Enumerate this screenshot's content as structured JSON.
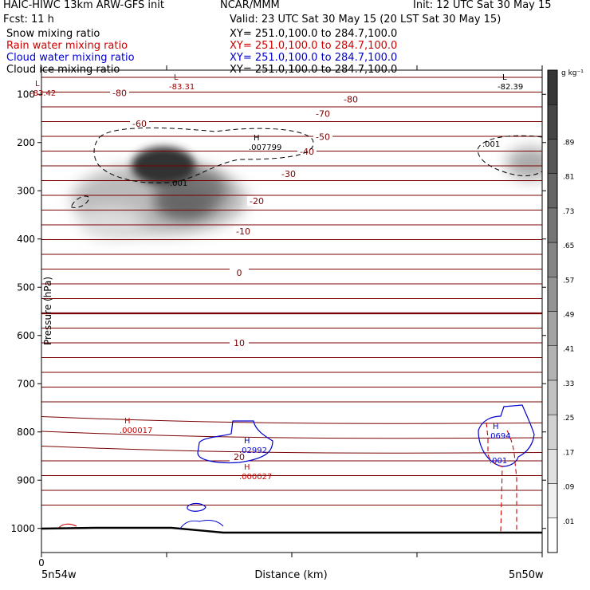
{
  "header": {
    "left_title": "HAIC-HIWC 13km ARW-GFS init",
    "center_title": "NCAR/MMM",
    "init": "Init: 12 UTC Sat 30 May 15",
    "fcst": "Fcst:    11 h",
    "valid": "Valid: 23 UTC Sat 30 May 15 (20 LST Sat 30 May 15)"
  },
  "fields": [
    {
      "name": "Snow mixing ratio",
      "xy": "XY= 251.0,100.0 to 284.7,100.0",
      "color": "#000000"
    },
    {
      "name": "Rain water mixing ratio",
      "xy": "XY= 251.0,100.0 to 284.7,100.0",
      "color": "#d00000"
    },
    {
      "name": "Cloud water mixing ratio",
      "xy": "XY= 251.0,100.0 to 284.7,100.0",
      "color": "#0000d0"
    },
    {
      "name": "Cloud ice mixing ratio",
      "xy": "XY= 251.0,100.0 to 284.7,100.0",
      "color": "#000000"
    }
  ],
  "colorbar": {
    "unit": "g kg⁻¹",
    "labels": [
      ".01",
      ".09",
      ".17",
      ".25",
      ".33",
      ".41",
      ".49",
      ".57",
      ".65",
      ".73",
      ".81",
      ".89"
    ]
  },
  "chart_data": {
    "type": "heatmap",
    "ylabel": "Pressure (hPa)",
    "xlabel": "Distance (km)",
    "x_left_label": "5n54w",
    "x_right_label": "5n50w",
    "x_origin_label": "0",
    "yticks": [
      100,
      200,
      300,
      400,
      500,
      600,
      700,
      800,
      900,
      1000
    ],
    "ylim": [
      50,
      1050
    ],
    "temperature_isotherms": [
      {
        "label": "-80",
        "p": 97
      },
      {
        "label": "-80",
        "p": 110
      },
      {
        "label": "-70",
        "p": 140
      },
      {
        "label": "-60",
        "p": 161
      },
      {
        "label": "-50",
        "p": 188
      },
      {
        "label": "-40",
        "p": 219
      },
      {
        "label": "-30",
        "p": 265
      },
      {
        "label": "-20",
        "p": 321
      },
      {
        "label": "-10",
        "p": 384
      },
      {
        "label": "0",
        "p": 470
      },
      {
        "label": "10",
        "p": 615
      },
      {
        "label": "20",
        "p": 852
      }
    ],
    "extrema_labels": [
      {
        "type": "L",
        "value": "-83.42",
        "color": "#a00000"
      },
      {
        "type": "L",
        "value": "-83.31",
        "color": "#a00000"
      },
      {
        "type": "L",
        "value": "-82.39",
        "color": "#000000"
      },
      {
        "type": "H",
        "value": ".007799",
        "color": "#000000"
      },
      {
        "type": "H",
        "value": ".000017",
        "color": "#d00000"
      },
      {
        "type": "H",
        "value": ".02992",
        "color": "#0000d0"
      },
      {
        "type": "H",
        "value": ".000027",
        "color": "#d00000"
      },
      {
        "type": "H",
        "value": ".0694",
        "color": "#0000d0"
      }
    ],
    "contour_labels": [
      {
        "value": ".001",
        "color": "#000000"
      },
      {
        "value": ".001",
        "color": "#000000"
      },
      {
        "value": ".001",
        "color": "#0000d0"
      }
    ]
  }
}
